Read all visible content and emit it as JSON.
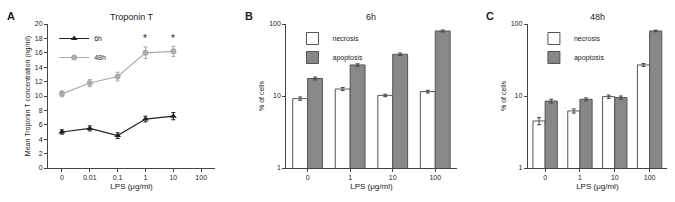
{
  "chart_data": [
    {
      "type": "line",
      "panel_label": "A",
      "title": "Troponin T",
      "x_label": "LPS (μg/ml)",
      "y_label": "Mean Troponin T concentration (ng/ml)",
      "categories": [
        "0",
        "0.01",
        "0.1",
        "1",
        "10",
        "100"
      ],
      "series": [
        {
          "name": "6h",
          "color": "#222222",
          "marker": "triangle-up",
          "values": [
            5.0,
            5.5,
            4.5,
            6.8,
            7.2,
            null
          ],
          "errors": [
            0.3,
            0.35,
            0.4,
            0.4,
            0.5,
            null
          ]
        },
        {
          "name": "48h",
          "color": "#aaaaaa",
          "marker": "circle",
          "values": [
            10.3,
            11.8,
            12.7,
            16.0,
            16.2,
            null
          ],
          "errors": [
            0.4,
            0.5,
            0.6,
            0.8,
            0.7,
            null
          ]
        }
      ],
      "annotations": [
        {
          "text": "*",
          "x": "1",
          "y": 17.0
        },
        {
          "text": "*",
          "x": "10",
          "y": 17.0
        }
      ],
      "ylim": [
        0,
        20
      ],
      "yticks": [
        0,
        2,
        4,
        6,
        8,
        10,
        12,
        14,
        16,
        18,
        20
      ],
      "grid": false,
      "legend": "upper left"
    },
    {
      "type": "bar",
      "panel_label": "B",
      "title": "6h",
      "x_label": "LPS (μg/ml)",
      "y_label": "% of cells",
      "categories": [
        "0",
        "1",
        "10",
        "100"
      ],
      "series": [
        {
          "name": "necrosis",
          "color": "#ffffff",
          "values": [
            9.2,
            12.5,
            10.2,
            11.5
          ],
          "errors": [
            0.5,
            0.6,
            0.4,
            0.5
          ]
        },
        {
          "name": "apoptosis",
          "color": "#888888",
          "values": [
            17.5,
            27.0,
            38.0,
            80.0
          ],
          "errors": [
            0.8,
            1.0,
            1.5,
            2.5
          ]
        }
      ],
      "ylim": [
        1,
        100
      ],
      "yticks": [
        1,
        10,
        100
      ],
      "log": "y",
      "grid": false,
      "legend": "upper left"
    },
    {
      "type": "bar",
      "panel_label": "C",
      "title": "48h",
      "x_label": "LPS (μg/ml)",
      "y_label": "% of cells",
      "categories": [
        "0",
        "1",
        "10",
        "100"
      ],
      "series": [
        {
          "name": "necrosis",
          "color": "#ffffff",
          "values": [
            4.5,
            6.2,
            9.8,
            27.0
          ],
          "errors": [
            0.5,
            0.4,
            0.5,
            1.2
          ]
        },
        {
          "name": "apoptosis",
          "color": "#888888",
          "values": [
            8.5,
            9.0,
            9.5,
            80.0
          ],
          "errors": [
            0.5,
            0.4,
            0.5,
            2.0
          ]
        }
      ],
      "ylim": [
        1,
        100
      ],
      "yticks": [
        1,
        10,
        100
      ],
      "log": "y",
      "grid": false,
      "legend": "upper left"
    }
  ]
}
